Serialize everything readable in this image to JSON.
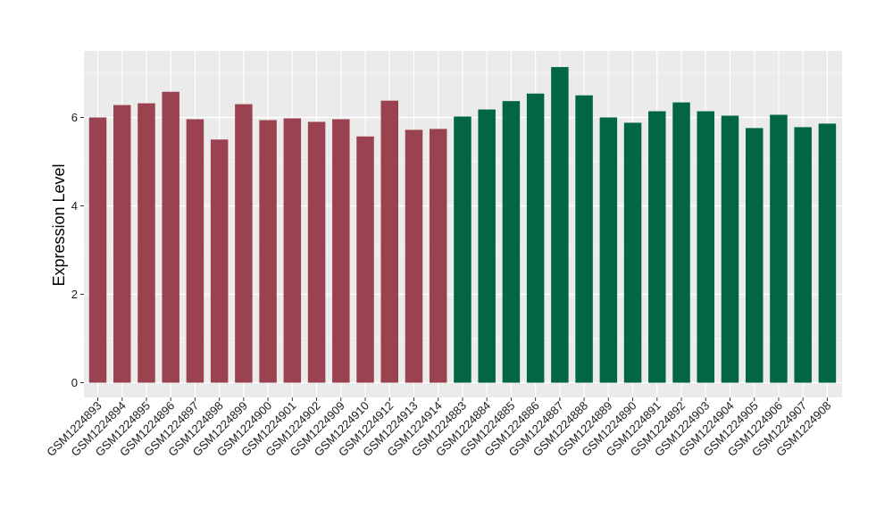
{
  "chart_data": {
    "type": "bar",
    "title": "",
    "xlabel": "",
    "ylabel": "Expression Level",
    "ylim": [
      0,
      7.3
    ],
    "yticks": [
      0,
      2,
      4,
      6
    ],
    "grid": true,
    "legend": "none",
    "colors": {
      "panel_background": "#EBEBEB",
      "gridline": "#FFFFFF",
      "group_a": "#9A4250",
      "group_b": "#036642"
    },
    "categories": [
      "GSM1224893",
      "GSM1224894",
      "GSM1224895",
      "GSM1224896",
      "GSM1224897",
      "GSM1224898",
      "GSM1224899",
      "GSM1224900",
      "GSM1224901",
      "GSM1224902",
      "GSM1224909",
      "GSM1224910",
      "GSM1224912",
      "GSM1224913",
      "GSM1224914",
      "GSM1224883",
      "GSM1224884",
      "GSM1224885",
      "GSM1224886",
      "GSM1224887",
      "GSM1224888",
      "GSM1224889",
      "GSM1224890",
      "GSM1224891",
      "GSM1224892",
      "GSM1224903",
      "GSM1224904",
      "GSM1224905",
      "GSM1224906",
      "GSM1224907",
      "GSM1224908"
    ],
    "values": [
      6.0,
      6.28,
      6.32,
      6.58,
      5.96,
      5.5,
      6.3,
      5.94,
      5.98,
      5.9,
      5.96,
      5.57,
      6.38,
      5.72,
      5.74,
      6.02,
      6.18,
      6.37,
      6.54,
      7.14,
      6.5,
      6.0,
      5.88,
      6.14,
      6.34,
      6.14,
      6.04,
      5.76,
      6.06,
      5.78,
      5.86
    ],
    "groups": [
      "a",
      "a",
      "a",
      "a",
      "a",
      "a",
      "a",
      "a",
      "a",
      "a",
      "a",
      "a",
      "a",
      "a",
      "a",
      "b",
      "b",
      "b",
      "b",
      "b",
      "b",
      "b",
      "b",
      "b",
      "b",
      "b",
      "b",
      "b",
      "b",
      "b",
      "b"
    ]
  }
}
